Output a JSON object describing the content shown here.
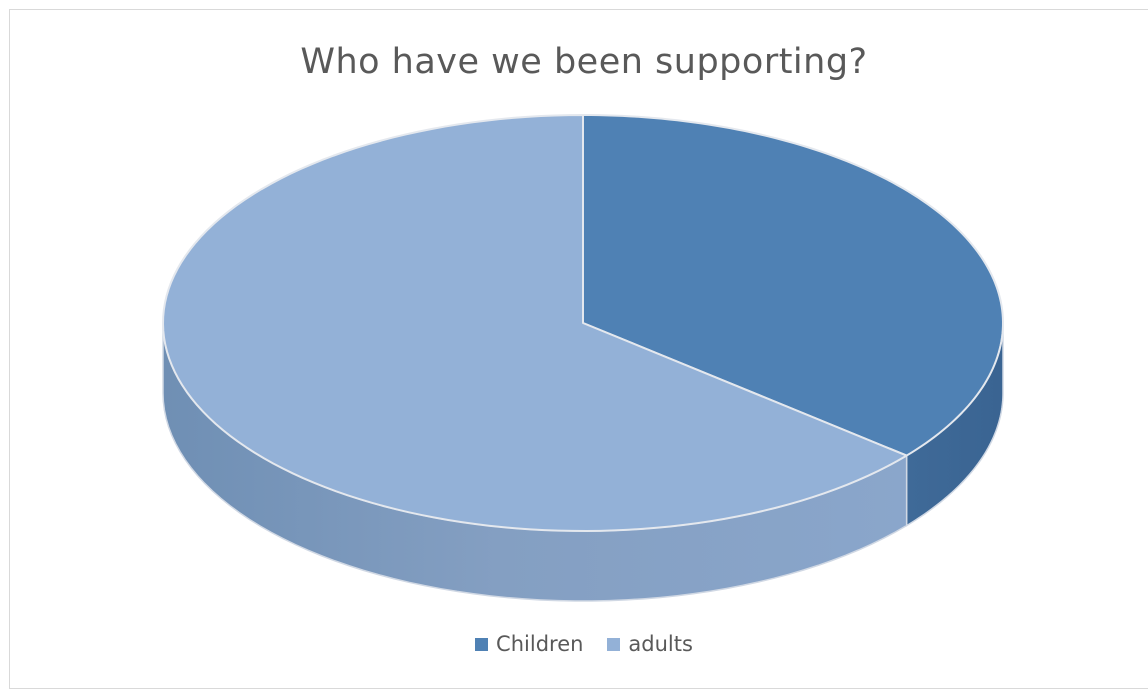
{
  "chart_data": {
    "type": "pie",
    "title": "Who have we been supporting?",
    "categories": [
      "Children",
      "adults"
    ],
    "values": [
      36,
      64
    ],
    "colors": [
      "#4f81b4",
      "#93b1d7"
    ],
    "style": "3d",
    "legend_position": "bottom"
  }
}
